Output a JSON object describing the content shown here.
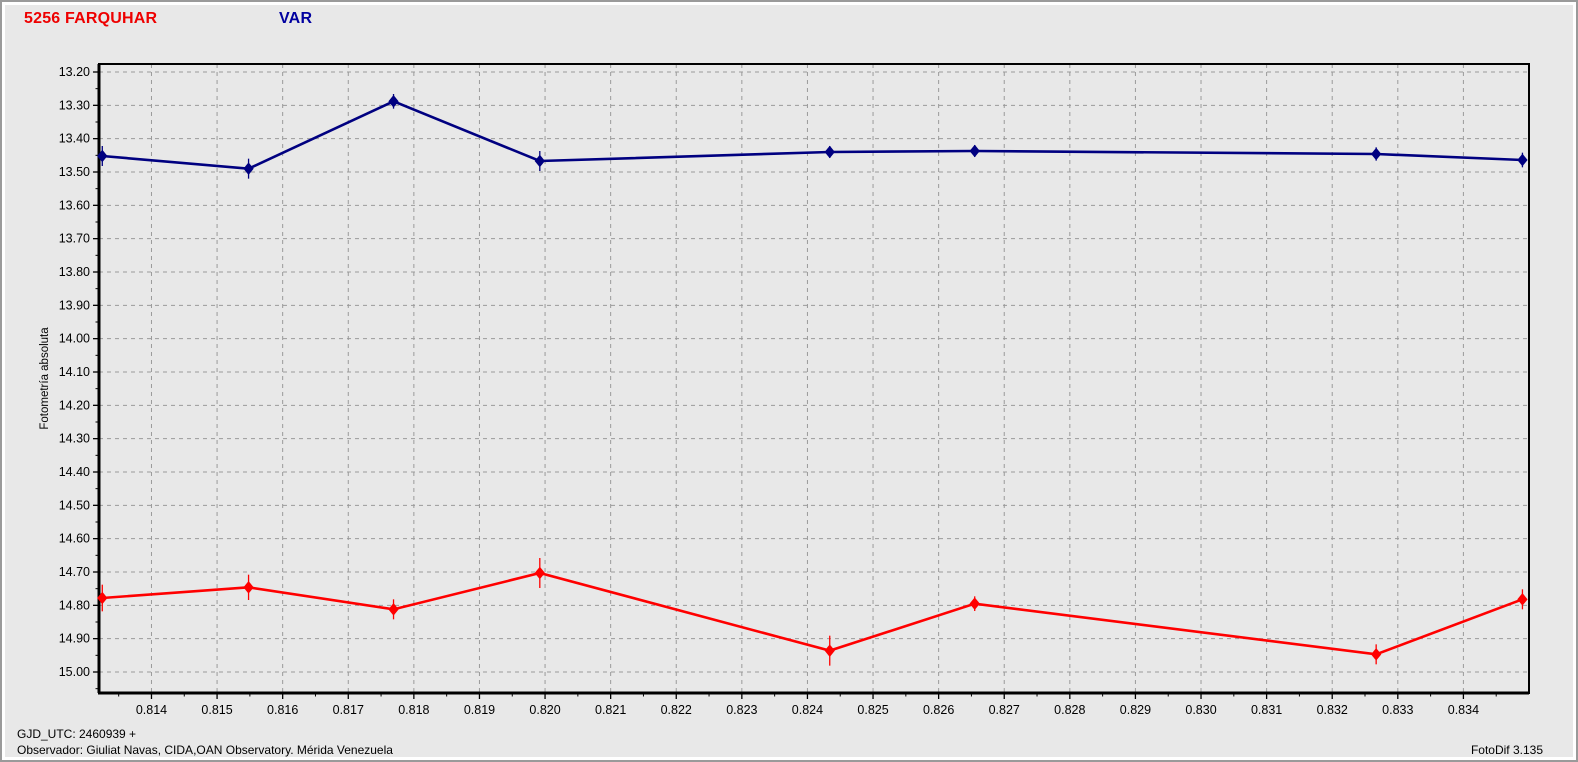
{
  "header": {
    "object_label": "5256 FARQUHAR",
    "var_label": "VAR"
  },
  "footer": {
    "gjd_line": "GJD_UTC: 2460939 +",
    "observer_line": "Observador: Giuliat Navas, CIDA,OAN Observatory. Mérida Venezuela",
    "software": "FotoDif 3.135"
  },
  "colors": {
    "background": "#e8e8e8",
    "panel_border": "#9a9a9a",
    "panel_highlight": "#ffffff",
    "grid": "#9a9a9a",
    "axis": "#000000",
    "object_series": "#ff0000",
    "var_series": "#000080",
    "object_title": "#ee0000",
    "var_title": "#0000a0",
    "text": "#000000"
  },
  "chart_data": {
    "type": "line",
    "title": "",
    "xlabel": "",
    "ylabel": "Fotometría absoluta",
    "grid": true,
    "legend_position": "none",
    "y_inverted": true,
    "xlim": [
      0.8132,
      0.835
    ],
    "ylim": [
      13.176,
      15.063
    ],
    "x_ticks": [
      0.814,
      0.815,
      0.816,
      0.817,
      0.818,
      0.819,
      0.82,
      0.821,
      0.822,
      0.823,
      0.824,
      0.825,
      0.826,
      0.827,
      0.828,
      0.829,
      0.83,
      0.831,
      0.832,
      0.833,
      0.834
    ],
    "x_minor_step": 0.0005,
    "y_ticks": [
      13.2,
      13.3,
      13.4,
      13.5,
      13.6,
      13.7,
      13.8,
      13.9,
      14.0,
      14.1,
      14.2,
      14.3,
      14.4,
      14.5,
      14.6,
      14.7,
      14.8,
      14.9,
      15.0
    ],
    "y_minor_step": 0.05,
    "series": [
      {
        "name": "VAR",
        "color": "#000080",
        "marker": "diamond",
        "x": [
          0.81325,
          0.81548,
          0.81769,
          0.81992,
          0.82434,
          0.82655,
          0.83267,
          0.8349
        ],
        "y": [
          13.452,
          13.49,
          13.288,
          13.467,
          13.44,
          13.437,
          13.446,
          13.464
        ],
        "yerr": [
          0.03,
          0.03,
          0.022,
          0.03,
          0.018,
          0.018,
          0.02,
          0.022
        ]
      },
      {
        "name": "5256 FARQUHAR",
        "color": "#ff0000",
        "marker": "diamond",
        "x": [
          0.81325,
          0.81548,
          0.81769,
          0.81992,
          0.82434,
          0.82655,
          0.83267,
          0.8349
        ],
        "y": [
          14.778,
          14.746,
          14.812,
          14.703,
          14.936,
          14.795,
          14.947,
          14.782
        ],
        "yerr": [
          0.04,
          0.038,
          0.03,
          0.045,
          0.045,
          0.022,
          0.03,
          0.03
        ]
      }
    ]
  }
}
